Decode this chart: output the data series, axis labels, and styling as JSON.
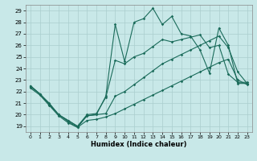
{
  "xlabel": "Humidex (Indice chaleur)",
  "background_color": "#c8e8e8",
  "grid_color": "#aacece",
  "line_color": "#1a6b5a",
  "xlim": [
    -0.5,
    23.5
  ],
  "ylim": [
    18.5,
    29.5
  ],
  "xticks": [
    0,
    1,
    2,
    3,
    4,
    5,
    6,
    7,
    8,
    9,
    10,
    11,
    12,
    13,
    14,
    15,
    16,
    17,
    18,
    19,
    20,
    21,
    22,
    23
  ],
  "yticks": [
    19,
    20,
    21,
    22,
    23,
    24,
    25,
    26,
    27,
    28,
    29
  ],
  "line1_x": [
    0,
    1,
    2,
    3,
    4,
    5,
    6,
    7,
    8,
    9,
    10,
    11,
    12,
    13,
    14,
    15,
    16,
    17,
    18,
    19,
    20,
    21,
    22,
    23
  ],
  "line1_y": [
    22.5,
    21.8,
    21.0,
    20.0,
    19.5,
    19.0,
    20.0,
    20.1,
    21.5,
    24.7,
    24.4,
    25.0,
    25.3,
    25.9,
    26.5,
    26.3,
    26.5,
    26.7,
    26.9,
    25.8,
    26.0,
    23.5,
    22.8,
    22.8
  ],
  "line2_x": [
    0,
    1,
    2,
    3,
    4,
    5,
    6,
    7,
    8,
    9,
    10,
    11,
    12,
    13,
    14,
    15,
    16,
    17,
    18,
    19,
    20,
    21,
    22,
    23
  ],
  "line2_y": [
    22.5,
    21.8,
    20.9,
    20.0,
    19.5,
    19.0,
    19.9,
    20.0,
    21.6,
    27.8,
    24.6,
    28.0,
    28.3,
    29.2,
    27.8,
    28.5,
    27.0,
    26.8,
    25.6,
    23.6,
    27.5,
    26.0,
    22.7,
    22.7
  ],
  "line3_x": [
    0,
    1,
    2,
    3,
    4,
    5,
    6,
    7,
    8,
    9,
    10,
    11,
    12,
    13,
    14,
    15,
    16,
    17,
    18,
    19,
    20,
    21,
    22,
    23
  ],
  "line3_y": [
    22.4,
    21.8,
    20.9,
    20.0,
    19.4,
    18.9,
    19.9,
    20.0,
    20.1,
    21.6,
    22.0,
    22.6,
    23.2,
    23.8,
    24.4,
    24.8,
    25.2,
    25.6,
    26.0,
    26.4,
    26.8,
    25.8,
    23.7,
    22.7
  ],
  "line4_x": [
    0,
    1,
    2,
    3,
    4,
    5,
    6,
    7,
    8,
    9,
    10,
    11,
    12,
    13,
    14,
    15,
    16,
    17,
    18,
    19,
    20,
    21,
    22,
    23
  ],
  "line4_y": [
    22.3,
    21.7,
    20.8,
    19.9,
    19.3,
    18.9,
    19.5,
    19.6,
    19.8,
    20.1,
    20.5,
    20.9,
    21.3,
    21.7,
    22.1,
    22.5,
    22.9,
    23.3,
    23.7,
    24.1,
    24.5,
    24.8,
    23.0,
    22.6
  ]
}
